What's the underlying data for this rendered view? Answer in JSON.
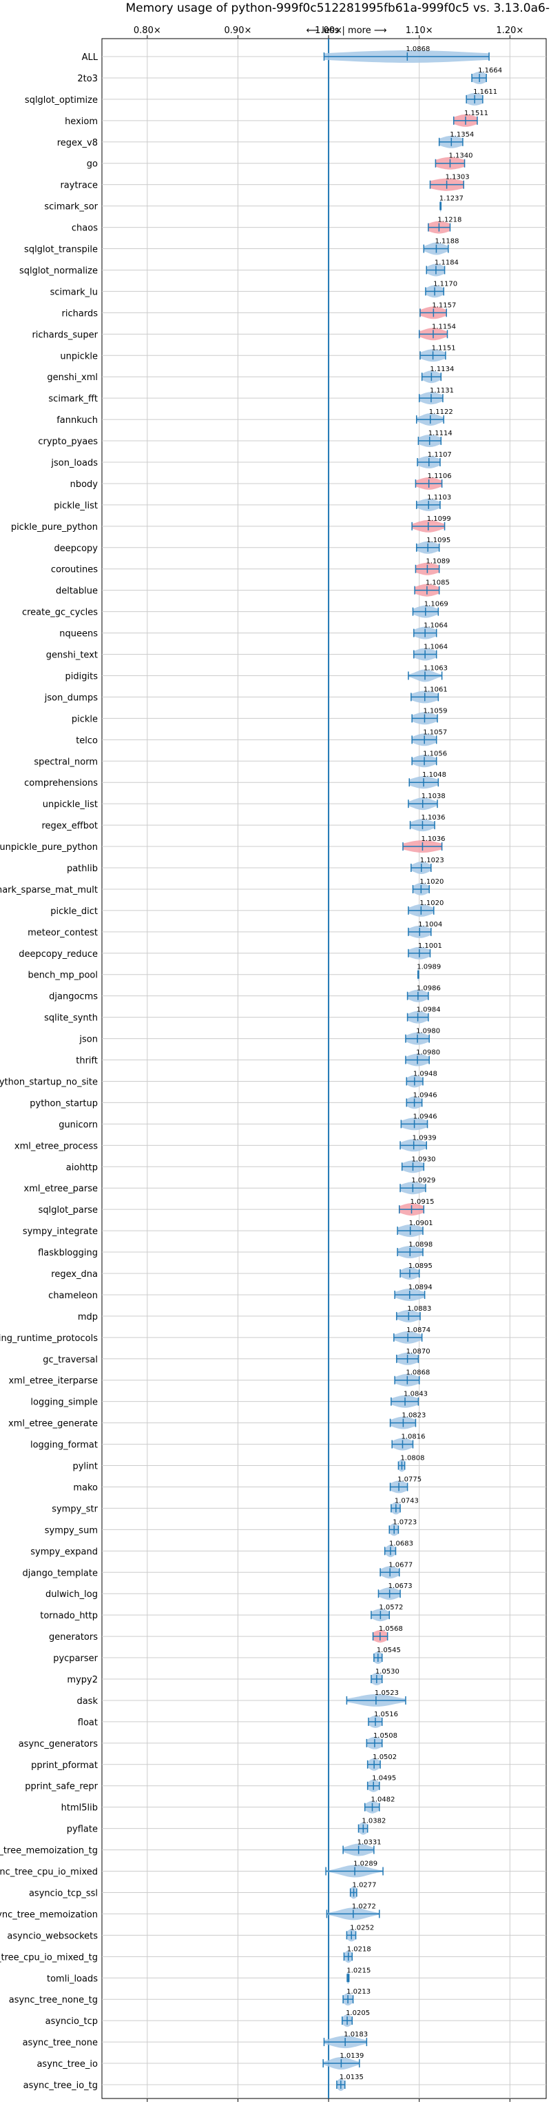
{
  "chart_data": {
    "type": "violin",
    "title": "Memory usage of python-999f0c512281995fb61a-999f0c5 vs. 3.13.0a6-",
    "direction_annotation": "⟵ less | more ⟶",
    "x_ticks": [
      0.8,
      0.9,
      1.0,
      1.1,
      1.2
    ],
    "x_tick_labels": [
      "0.80×",
      "0.90×",
      "1.00×",
      "1.10×",
      "1.20×"
    ],
    "xlim": [
      0.75,
      1.24
    ],
    "reference_line": 1.0,
    "grid": true,
    "colors": {
      "normal": "#a6c8e6",
      "highlight": "#f4a0a8",
      "line": "#1f77b4",
      "reference": "#1f77b4",
      "grid": "#cccccc"
    },
    "benchmarks": [
      {
        "name": "ALL",
        "label": "1.0868",
        "value": 1.0868,
        "min": 0.995,
        "max": 1.177,
        "spread": 0.08,
        "highlight": false
      },
      {
        "name": "2to3",
        "label": "1.1664",
        "value": 1.1664,
        "min": 1.158,
        "max": 1.174,
        "spread": 0.008,
        "highlight": false
      },
      {
        "name": "sqlglot_optimize",
        "label": "1.1611",
        "value": 1.1611,
        "min": 1.152,
        "max": 1.17,
        "spread": 0.01,
        "highlight": false
      },
      {
        "name": "hexiom",
        "label": "1.1511",
        "value": 1.1511,
        "min": 1.138,
        "max": 1.164,
        "spread": 0.012,
        "highlight": true
      },
      {
        "name": "regex_v8",
        "label": "1.1354",
        "value": 1.1354,
        "min": 1.122,
        "max": 1.148,
        "spread": 0.012,
        "highlight": false
      },
      {
        "name": "go",
        "label": "1.1340",
        "value": 1.134,
        "min": 1.118,
        "max": 1.15,
        "spread": 0.015,
        "highlight": true
      },
      {
        "name": "raytrace",
        "label": "1.1303",
        "value": 1.1303,
        "min": 1.112,
        "max": 1.149,
        "spread": 0.018,
        "highlight": true
      },
      {
        "name": "scimark_sor",
        "label": "1.1237",
        "value": 1.1237,
        "min": 1.123,
        "max": 1.124,
        "spread": 0.001,
        "highlight": false
      },
      {
        "name": "chaos",
        "label": "1.1218",
        "value": 1.1218,
        "min": 1.11,
        "max": 1.134,
        "spread": 0.012,
        "highlight": true
      },
      {
        "name": "sqlglot_transpile",
        "label": "1.1188",
        "value": 1.1188,
        "min": 1.105,
        "max": 1.132,
        "spread": 0.01,
        "highlight": false
      },
      {
        "name": "sqlglot_normalize",
        "label": "1.1184",
        "value": 1.1184,
        "min": 1.108,
        "max": 1.128,
        "spread": 0.009,
        "highlight": false
      },
      {
        "name": "scimark_lu",
        "label": "1.1170",
        "value": 1.117,
        "min": 1.107,
        "max": 1.127,
        "spread": 0.009,
        "highlight": false
      },
      {
        "name": "richards",
        "label": "1.1157",
        "value": 1.1157,
        "min": 1.101,
        "max": 1.13,
        "spread": 0.012,
        "highlight": true
      },
      {
        "name": "richards_super",
        "label": "1.1154",
        "value": 1.1154,
        "min": 1.1,
        "max": 1.131,
        "spread": 0.012,
        "highlight": true
      },
      {
        "name": "unpickle",
        "label": "1.1151",
        "value": 1.1151,
        "min": 1.101,
        "max": 1.129,
        "spread": 0.012,
        "highlight": false
      },
      {
        "name": "genshi_xml",
        "label": "1.1134",
        "value": 1.1134,
        "min": 1.103,
        "max": 1.124,
        "spread": 0.009,
        "highlight": false
      },
      {
        "name": "scimark_fft",
        "label": "1.1131",
        "value": 1.1131,
        "min": 1.1,
        "max": 1.126,
        "spread": 0.011,
        "highlight": false
      },
      {
        "name": "fannkuch",
        "label": "1.1122",
        "value": 1.1122,
        "min": 1.097,
        "max": 1.127,
        "spread": 0.01,
        "highlight": false
      },
      {
        "name": "crypto_pyaes",
        "label": "1.1114",
        "value": 1.1114,
        "min": 1.099,
        "max": 1.124,
        "spread": 0.011,
        "highlight": false
      },
      {
        "name": "json_loads",
        "label": "1.1107",
        "value": 1.1107,
        "min": 1.098,
        "max": 1.123,
        "spread": 0.011,
        "highlight": false
      },
      {
        "name": "nbody",
        "label": "1.1106",
        "value": 1.1106,
        "min": 1.096,
        "max": 1.125,
        "spread": 0.012,
        "highlight": true
      },
      {
        "name": "pickle_list",
        "label": "1.1103",
        "value": 1.1103,
        "min": 1.097,
        "max": 1.123,
        "spread": 0.011,
        "highlight": false
      },
      {
        "name": "pickle_pure_python",
        "label": "1.1099",
        "value": 1.1099,
        "min": 1.092,
        "max": 1.128,
        "spread": 0.013,
        "highlight": true
      },
      {
        "name": "deepcopy",
        "label": "1.1095",
        "value": 1.1095,
        "min": 1.097,
        "max": 1.122,
        "spread": 0.011,
        "highlight": false
      },
      {
        "name": "coroutines",
        "label": "1.1089",
        "value": 1.1089,
        "min": 1.096,
        "max": 1.122,
        "spread": 0.012,
        "highlight": true
      },
      {
        "name": "deltablue",
        "label": "1.1085",
        "value": 1.1085,
        "min": 1.095,
        "max": 1.122,
        "spread": 0.012,
        "highlight": true
      },
      {
        "name": "create_gc_cycles",
        "label": "1.1069",
        "value": 1.1069,
        "min": 1.093,
        "max": 1.121,
        "spread": 0.011,
        "highlight": false
      },
      {
        "name": "nqueens",
        "label": "1.1064",
        "value": 1.1064,
        "min": 1.094,
        "max": 1.119,
        "spread": 0.011,
        "highlight": false
      },
      {
        "name": "genshi_text",
        "label": "1.1064",
        "value": 1.1064,
        "min": 1.094,
        "max": 1.119,
        "spread": 0.011,
        "highlight": false
      },
      {
        "name": "pidigits",
        "label": "1.1063",
        "value": 1.1063,
        "min": 1.088,
        "max": 1.125,
        "spread": 0.01,
        "highlight": false
      },
      {
        "name": "json_dumps",
        "label": "1.1061",
        "value": 1.1061,
        "min": 1.091,
        "max": 1.121,
        "spread": 0.013,
        "highlight": false
      },
      {
        "name": "pickle",
        "label": "1.1059",
        "value": 1.1059,
        "min": 1.092,
        "max": 1.12,
        "spread": 0.012,
        "highlight": false
      },
      {
        "name": "telco",
        "label": "1.1057",
        "value": 1.1057,
        "min": 1.092,
        "max": 1.119,
        "spread": 0.011,
        "highlight": false
      },
      {
        "name": "spectral_norm",
        "label": "1.1056",
        "value": 1.1056,
        "min": 1.092,
        "max": 1.119,
        "spread": 0.011,
        "highlight": false
      },
      {
        "name": "comprehensions",
        "label": "1.1048",
        "value": 1.1048,
        "min": 1.089,
        "max": 1.121,
        "spread": 0.013,
        "highlight": false
      },
      {
        "name": "unpickle_list",
        "label": "1.1038",
        "value": 1.1038,
        "min": 1.088,
        "max": 1.12,
        "spread": 0.011,
        "highlight": false
      },
      {
        "name": "regex_effbot",
        "label": "1.1036",
        "value": 1.1036,
        "min": 1.09,
        "max": 1.117,
        "spread": 0.011,
        "highlight": false
      },
      {
        "name": "unpickle_pure_python",
        "label": "1.1036",
        "value": 1.1036,
        "min": 1.082,
        "max": 1.125,
        "spread": 0.018,
        "highlight": true
      },
      {
        "name": "pathlib",
        "label": "1.1023",
        "value": 1.1023,
        "min": 1.091,
        "max": 1.113,
        "spread": 0.009,
        "highlight": false
      },
      {
        "name": "scimark_sparse_mat_mult",
        "label": "1.1020",
        "value": 1.102,
        "min": 1.093,
        "max": 1.111,
        "spread": 0.008,
        "highlight": false
      },
      {
        "name": "pickle_dict",
        "label": "1.1020",
        "value": 1.102,
        "min": 1.088,
        "max": 1.116,
        "spread": 0.011,
        "highlight": false
      },
      {
        "name": "meteor_contest",
        "label": "1.1004",
        "value": 1.1004,
        "min": 1.088,
        "max": 1.113,
        "spread": 0.011,
        "highlight": false
      },
      {
        "name": "deepcopy_reduce",
        "label": "1.1001",
        "value": 1.1001,
        "min": 1.088,
        "max": 1.112,
        "spread": 0.011,
        "highlight": false
      },
      {
        "name": "bench_mp_pool",
        "label": "1.0989",
        "value": 1.0989,
        "min": 1.0985,
        "max": 1.0993,
        "spread": 0.001,
        "highlight": false
      },
      {
        "name": "djangocms",
        "label": "1.0986",
        "value": 1.0986,
        "min": 1.087,
        "max": 1.11,
        "spread": 0.01,
        "highlight": false
      },
      {
        "name": "sqlite_synth",
        "label": "1.0984",
        "value": 1.0984,
        "min": 1.087,
        "max": 1.11,
        "spread": 0.01,
        "highlight": false
      },
      {
        "name": "json",
        "label": "1.0980",
        "value": 1.098,
        "min": 1.085,
        "max": 1.111,
        "spread": 0.011,
        "highlight": false
      },
      {
        "name": "thrift",
        "label": "1.0980",
        "value": 1.098,
        "min": 1.085,
        "max": 1.111,
        "spread": 0.011,
        "highlight": false
      },
      {
        "name": "python_startup_no_site",
        "label": "1.0948",
        "value": 1.0948,
        "min": 1.086,
        "max": 1.104,
        "spread": 0.008,
        "highlight": false
      },
      {
        "name": "python_startup",
        "label": "1.0946",
        "value": 1.0946,
        "min": 1.086,
        "max": 1.103,
        "spread": 0.008,
        "highlight": false
      },
      {
        "name": "gunicorn",
        "label": "1.0946",
        "value": 1.0946,
        "min": 1.08,
        "max": 1.109,
        "spread": 0.013,
        "highlight": false
      },
      {
        "name": "xml_etree_process",
        "label": "1.0939",
        "value": 1.0939,
        "min": 1.079,
        "max": 1.108,
        "spread": 0.012,
        "highlight": false
      },
      {
        "name": "aiohttp",
        "label": "1.0930",
        "value": 1.093,
        "min": 1.081,
        "max": 1.105,
        "spread": 0.011,
        "highlight": false
      },
      {
        "name": "xml_etree_parse",
        "label": "1.0929",
        "value": 1.0929,
        "min": 1.079,
        "max": 1.107,
        "spread": 0.012,
        "highlight": false
      },
      {
        "name": "sqlglot_parse",
        "label": "1.0915",
        "value": 1.0915,
        "min": 1.078,
        "max": 1.105,
        "spread": 0.012,
        "highlight": true
      },
      {
        "name": "sympy_integrate",
        "label": "1.0901",
        "value": 1.0901,
        "min": 1.076,
        "max": 1.104,
        "spread": 0.012,
        "highlight": false
      },
      {
        "name": "flaskblogging",
        "label": "1.0898",
        "value": 1.0898,
        "min": 1.076,
        "max": 1.104,
        "spread": 0.012,
        "highlight": false
      },
      {
        "name": "regex_dna",
        "label": "1.0895",
        "value": 1.0895,
        "min": 1.079,
        "max": 1.1,
        "spread": 0.009,
        "highlight": false
      },
      {
        "name": "chameleon",
        "label": "1.0894",
        "value": 1.0894,
        "min": 1.073,
        "max": 1.106,
        "spread": 0.013,
        "highlight": false
      },
      {
        "name": "mdp",
        "label": "1.0883",
        "value": 1.0883,
        "min": 1.075,
        "max": 1.101,
        "spread": 0.011,
        "highlight": false
      },
      {
        "name": "typing_runtime_protocols",
        "label": "1.0874",
        "value": 1.0874,
        "min": 1.072,
        "max": 1.103,
        "spread": 0.012,
        "highlight": false
      },
      {
        "name": "gc_traversal",
        "label": "1.0870",
        "value": 1.087,
        "min": 1.075,
        "max": 1.099,
        "spread": 0.011,
        "highlight": false
      },
      {
        "name": "xml_etree_iterparse",
        "label": "1.0868",
        "value": 1.0868,
        "min": 1.073,
        "max": 1.1,
        "spread": 0.012,
        "highlight": false
      },
      {
        "name": "logging_simple",
        "label": "1.0843",
        "value": 1.0843,
        "min": 1.069,
        "max": 1.099,
        "spread": 0.013,
        "highlight": false
      },
      {
        "name": "xml_etree_generate",
        "label": "1.0823",
        "value": 1.0823,
        "min": 1.068,
        "max": 1.096,
        "spread": 0.012,
        "highlight": false
      },
      {
        "name": "logging_format",
        "label": "1.0816",
        "value": 1.0816,
        "min": 1.07,
        "max": 1.093,
        "spread": 0.01,
        "highlight": false
      },
      {
        "name": "pylint",
        "label": "1.0808",
        "value": 1.0808,
        "min": 1.077,
        "max": 1.084,
        "spread": 0.004,
        "highlight": false
      },
      {
        "name": "mako",
        "label": "1.0775",
        "value": 1.0775,
        "min": 1.068,
        "max": 1.087,
        "spread": 0.009,
        "highlight": false
      },
      {
        "name": "sympy_str",
        "label": "1.0743",
        "value": 1.0743,
        "min": 1.069,
        "max": 1.079,
        "spread": 0.005,
        "highlight": false
      },
      {
        "name": "sympy_sum",
        "label": "1.0723",
        "value": 1.0723,
        "min": 1.067,
        "max": 1.077,
        "spread": 0.005,
        "highlight": false
      },
      {
        "name": "sympy_expand",
        "label": "1.0683",
        "value": 1.0683,
        "min": 1.062,
        "max": 1.074,
        "spread": 0.005,
        "highlight": false
      },
      {
        "name": "django_template",
        "label": "1.0677",
        "value": 1.0677,
        "min": 1.057,
        "max": 1.078,
        "spread": 0.009,
        "highlight": false
      },
      {
        "name": "dulwich_log",
        "label": "1.0673",
        "value": 1.0673,
        "min": 1.055,
        "max": 1.079,
        "spread": 0.01,
        "highlight": false
      },
      {
        "name": "tornado_http",
        "label": "1.0572",
        "value": 1.0572,
        "min": 1.047,
        "max": 1.067,
        "spread": 0.009,
        "highlight": false
      },
      {
        "name": "generators",
        "label": "1.0568",
        "value": 1.0568,
        "min": 1.049,
        "max": 1.065,
        "spread": 0.008,
        "highlight": true
      },
      {
        "name": "pycparser",
        "label": "1.0545",
        "value": 1.0545,
        "min": 1.05,
        "max": 1.059,
        "spread": 0.005,
        "highlight": false
      },
      {
        "name": "mypy2",
        "label": "1.0530",
        "value": 1.053,
        "min": 1.047,
        "max": 1.059,
        "spread": 0.006,
        "highlight": false
      },
      {
        "name": "dask",
        "label": "1.0523",
        "value": 1.0523,
        "min": 1.02,
        "max": 1.085,
        "spread": 0.02,
        "highlight": false
      },
      {
        "name": "float",
        "label": "1.0516",
        "value": 1.0516,
        "min": 1.044,
        "max": 1.059,
        "spread": 0.007,
        "highlight": false
      },
      {
        "name": "async_generators",
        "label": "1.0508",
        "value": 1.0508,
        "min": 1.042,
        "max": 1.059,
        "spread": 0.008,
        "highlight": false
      },
      {
        "name": "pprint_pformat",
        "label": "1.0502",
        "value": 1.0502,
        "min": 1.043,
        "max": 1.057,
        "spread": 0.006,
        "highlight": false
      },
      {
        "name": "pprint_safe_repr",
        "label": "1.0495",
        "value": 1.0495,
        "min": 1.043,
        "max": 1.056,
        "spread": 0.006,
        "highlight": false
      },
      {
        "name": "html5lib",
        "label": "1.0482",
        "value": 1.0482,
        "min": 1.04,
        "max": 1.056,
        "spread": 0.007,
        "highlight": false
      },
      {
        "name": "pyflate",
        "label": "1.0382",
        "value": 1.0382,
        "min": 1.033,
        "max": 1.043,
        "spread": 0.005,
        "highlight": false
      },
      {
        "name": "async_tree_memoization_tg",
        "label": "1.0331",
        "value": 1.0331,
        "min": 1.016,
        "max": 1.05,
        "spread": 0.012,
        "highlight": false
      },
      {
        "name": "async_tree_cpu_io_mixed",
        "label": "1.0289",
        "value": 1.0289,
        "min": 0.997,
        "max": 1.06,
        "spread": 0.015,
        "highlight": false
      },
      {
        "name": "asyncio_tcp_ssl",
        "label": "1.0277",
        "value": 1.0277,
        "min": 1.024,
        "max": 1.031,
        "spread": 0.004,
        "highlight": false
      },
      {
        "name": "async_tree_memoization",
        "label": "1.0272",
        "value": 1.0272,
        "min": 0.998,
        "max": 1.056,
        "spread": 0.015,
        "highlight": false
      },
      {
        "name": "asyncio_websockets",
        "label": "1.0252",
        "value": 1.0252,
        "min": 1.02,
        "max": 1.03,
        "spread": 0.005,
        "highlight": false
      },
      {
        "name": "async_tree_cpu_io_mixed_tg",
        "label": "1.0218",
        "value": 1.0218,
        "min": 1.017,
        "max": 1.026,
        "spread": 0.004,
        "highlight": false
      },
      {
        "name": "tomli_loads",
        "label": "1.0215",
        "value": 1.0215,
        "min": 1.0205,
        "max": 1.0225,
        "spread": 0.001,
        "highlight": false
      },
      {
        "name": "async_tree_none_tg",
        "label": "1.0213",
        "value": 1.0213,
        "min": 1.016,
        "max": 1.027,
        "spread": 0.005,
        "highlight": false
      },
      {
        "name": "asyncio_tcp",
        "label": "1.0205",
        "value": 1.0205,
        "min": 1.015,
        "max": 1.026,
        "spread": 0.005,
        "highlight": false
      },
      {
        "name": "async_tree_none",
        "label": "1.0183",
        "value": 1.0183,
        "min": 0.995,
        "max": 1.042,
        "spread": 0.015,
        "highlight": false
      },
      {
        "name": "async_tree_io",
        "label": "1.0139",
        "value": 1.0139,
        "min": 0.994,
        "max": 1.034,
        "spread": 0.012,
        "highlight": false
      },
      {
        "name": "async_tree_io_tg",
        "label": "1.0135",
        "value": 1.0135,
        "min": 1.009,
        "max": 1.018,
        "spread": 0.004,
        "highlight": false
      }
    ]
  }
}
